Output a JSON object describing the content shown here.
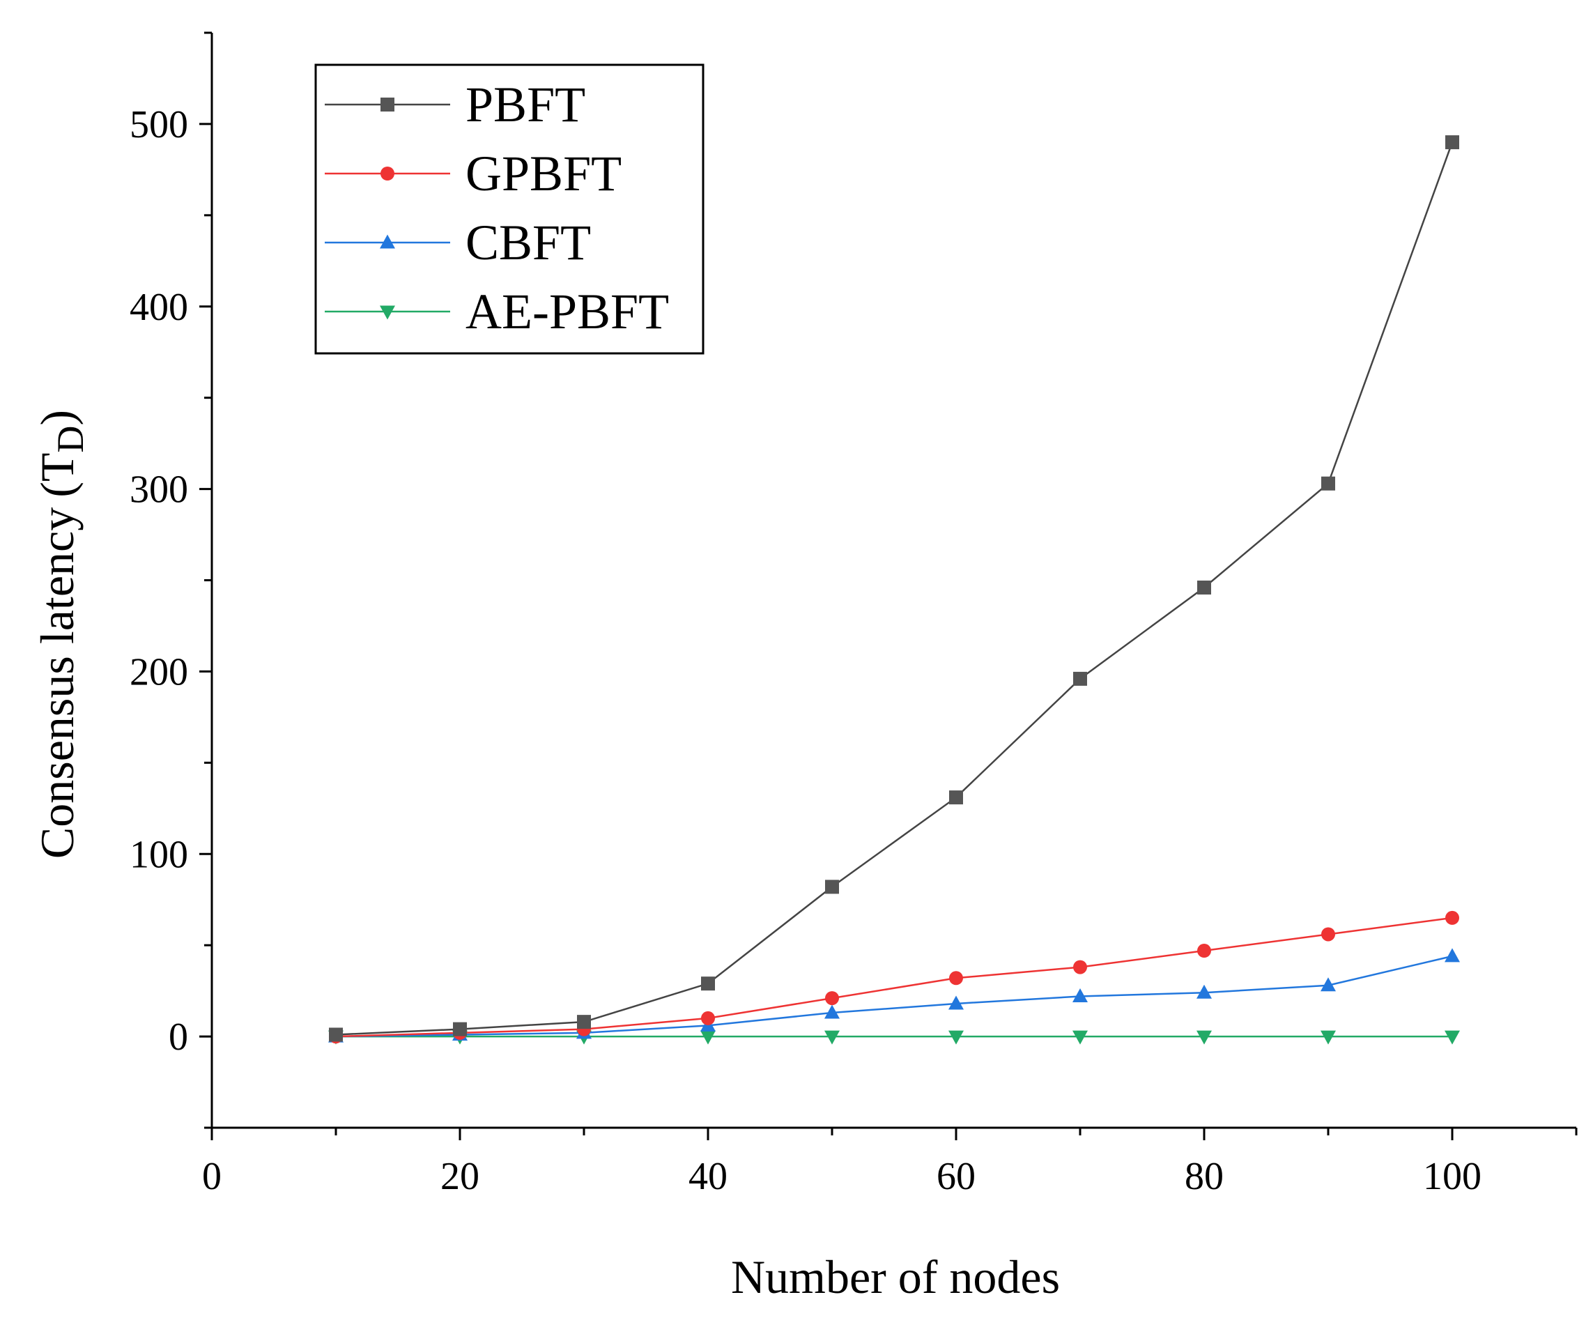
{
  "chart_data": {
    "type": "line",
    "title": "",
    "xlabel": "Number of nodes",
    "ylabel": "Consensus latency",
    "ylabel_paren_open": "(",
    "ylabel_unit_main": "T",
    "ylabel_unit_sub": "D",
    "ylabel_paren_close": ")",
    "xlim": [
      0,
      110
    ],
    "ylim": [
      -50,
      550
    ],
    "x_ticks": [
      0,
      20,
      40,
      60,
      80,
      100
    ],
    "y_ticks": [
      0,
      100,
      200,
      300,
      400,
      500
    ],
    "x": [
      10,
      20,
      30,
      40,
      50,
      60,
      70,
      80,
      90,
      100
    ],
    "series": [
      {
        "name": "PBFT",
        "color": "#555555",
        "line_color": "#444444",
        "marker": "square",
        "values": [
          1,
          4,
          8,
          29,
          82,
          131,
          196,
          246,
          303,
          490
        ]
      },
      {
        "name": "GPBFT",
        "color": "#ee3333",
        "line_color": "#ee3333",
        "marker": "circle",
        "values": [
          0,
          2,
          4,
          10,
          21,
          32,
          38,
          47,
          56,
          65
        ]
      },
      {
        "name": "CBFT",
        "color": "#2277dd",
        "line_color": "#2277dd",
        "marker": "triangle-up",
        "values": [
          0,
          1,
          2,
          6,
          13,
          18,
          22,
          24,
          28,
          44
        ]
      },
      {
        "name": "AE-PBFT",
        "color": "#22aa66",
        "line_color": "#22aa66",
        "marker": "triangle-down",
        "values": [
          0,
          0,
          0,
          0,
          0,
          0,
          0,
          0,
          0,
          0
        ]
      }
    ],
    "legend_position": "top-left",
    "grid": false
  }
}
